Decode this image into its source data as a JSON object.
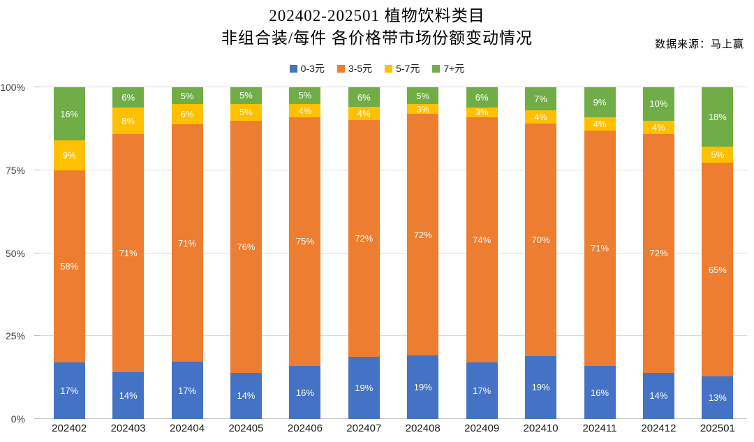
{
  "title": {
    "line1": "202402-202501 植物饮料类目",
    "line2": "非组合装/每件 各价格带市场份额变动情况"
  },
  "source": "数据来源：马上赢",
  "chart_data": {
    "type": "bar",
    "stacked": true,
    "percent": true,
    "title": "202402-202501 植物饮料类目 非组合装/每件 各价格带市场份额变动情况",
    "xlabel": "",
    "ylabel": "",
    "ylim": [
      0,
      100
    ],
    "y_ticks": [
      "0%",
      "25%",
      "50%",
      "75%",
      "100%"
    ],
    "grid": true,
    "legend_position": "top",
    "label_format": "{value}%",
    "categories": [
      "202402",
      "202403",
      "202404",
      "202405",
      "202406",
      "202407",
      "202408",
      "202409",
      "202410",
      "202411",
      "202412",
      "202501"
    ],
    "series": [
      {
        "name": "0-3元",
        "color": "#4472C4",
        "values": [
          17,
          14,
          17,
          14,
          16,
          19,
          19,
          17,
          19,
          16,
          14,
          13
        ]
      },
      {
        "name": "3-5元",
        "color": "#ED7D31",
        "values": [
          58,
          71,
          71,
          76,
          75,
          72,
          72,
          74,
          70,
          71,
          72,
          65
        ]
      },
      {
        "name": "5-7元",
        "color": "#FFC000",
        "values": [
          9,
          8,
          6,
          5,
          4,
          4,
          3,
          3,
          4,
          4,
          4,
          5
        ]
      },
      {
        "name": "7+元",
        "color": "#70AD47",
        "values": [
          16,
          6,
          5,
          5,
          5,
          6,
          5,
          6,
          7,
          9,
          10,
          18
        ]
      }
    ]
  }
}
